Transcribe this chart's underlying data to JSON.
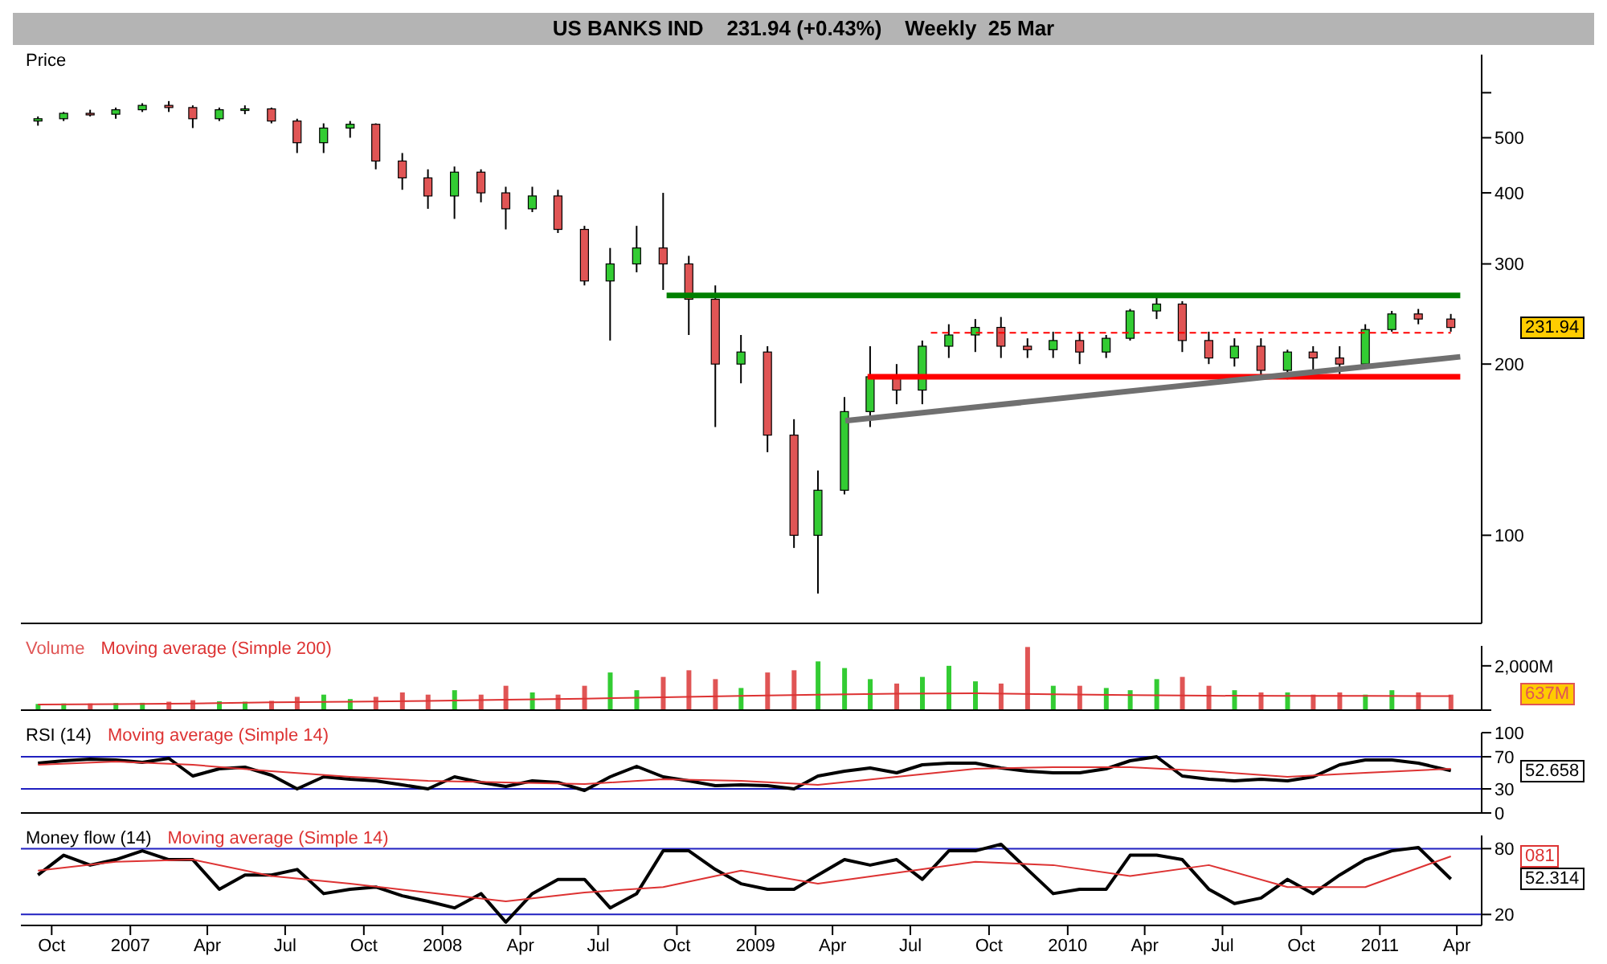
{
  "chart_data": [
    {
      "type": "candlestick",
      "title": "US BANKS IND    231.94 (+0.43%)    Weekly  25 Mar",
      "ylabel": "Price",
      "log": true,
      "tick_labels": "y",
      "x": [
        "2006-09-15",
        "2006-10-15",
        "2006-11-15",
        "2006-12-15",
        "2007-01-15",
        "2007-02-15",
        "2007-03-15",
        "2007-04-15",
        "2007-05-15",
        "2007-06-15",
        "2007-07-15",
        "2007-08-15",
        "2007-09-15",
        "2007-10-15",
        "2007-11-15",
        "2007-12-15",
        "2008-01-15",
        "2008-02-15",
        "2008-03-15",
        "2008-04-15",
        "2008-05-15",
        "2008-06-15",
        "2008-07-15",
        "2008-08-15",
        "2008-09-15",
        "2008-10-15",
        "2008-11-15",
        "2008-12-15",
        "2009-01-15",
        "2009-02-15",
        "2009-03-15",
        "2009-04-15",
        "2009-05-15",
        "2009-06-15",
        "2009-07-15",
        "2009-08-15",
        "2009-09-15",
        "2009-10-15",
        "2009-11-15",
        "2009-12-15",
        "2010-01-15",
        "2010-02-15",
        "2010-03-15",
        "2010-04-15",
        "2010-05-15",
        "2010-06-15",
        "2010-07-15",
        "2010-08-15",
        "2010-09-15",
        "2010-10-15",
        "2010-11-15",
        "2010-12-15",
        "2011-01-15",
        "2011-02-15",
        "2011-03-25"
      ],
      "ohlc": [
        [
          535,
          545,
          525,
          540
        ],
        [
          540,
          555,
          535,
          552
        ],
        [
          552,
          560,
          545,
          550
        ],
        [
          550,
          565,
          540,
          560
        ],
        [
          560,
          575,
          555,
          570
        ],
        [
          570,
          580,
          555,
          565
        ],
        [
          565,
          570,
          520,
          540
        ],
        [
          540,
          565,
          535,
          560
        ],
        [
          560,
          570,
          550,
          562
        ],
        [
          562,
          565,
          530,
          535
        ],
        [
          535,
          540,
          470,
          490
        ],
        [
          490,
          530,
          470,
          520
        ],
        [
          520,
          535,
          500,
          528
        ],
        [
          528,
          530,
          440,
          455
        ],
        [
          455,
          470,
          405,
          425
        ],
        [
          425,
          440,
          375,
          395
        ],
        [
          395,
          445,
          360,
          435
        ],
        [
          435,
          440,
          385,
          400
        ],
        [
          400,
          410,
          345,
          375
        ],
        [
          375,
          410,
          370,
          395
        ],
        [
          395,
          405,
          340,
          345
        ],
        [
          345,
          350,
          275,
          280
        ],
        [
          280,
          320,
          220,
          300
        ],
        [
          300,
          350,
          290,
          320
        ],
        [
          320,
          400,
          270,
          300
        ],
        [
          300,
          310,
          225,
          260
        ],
        [
          260,
          275,
          155,
          200
        ],
        [
          200,
          225,
          185,
          210
        ],
        [
          210,
          215,
          140,
          150
        ],
        [
          150,
          160,
          95,
          100
        ],
        [
          100,
          130,
          79,
          120
        ],
        [
          120,
          175,
          118,
          165
        ],
        [
          165,
          215,
          155,
          190
        ],
        [
          190,
          200,
          170,
          180
        ],
        [
          180,
          220,
          170,
          215
        ],
        [
          215,
          235,
          205,
          225
        ],
        [
          225,
          240,
          210,
          232
        ],
        [
          232,
          242,
          205,
          215
        ],
        [
          215,
          222,
          205,
          212
        ],
        [
          212,
          228,
          205,
          220
        ],
        [
          220,
          228,
          200,
          210
        ],
        [
          210,
          225,
          205,
          222
        ],
        [
          222,
          250,
          220,
          248
        ],
        [
          248,
          264,
          240,
          255
        ],
        [
          255,
          258,
          210,
          220
        ],
        [
          220,
          228,
          200,
          205
        ],
        [
          205,
          222,
          198,
          215
        ],
        [
          215,
          222,
          190,
          195
        ],
        [
          195,
          212,
          188,
          210
        ],
        [
          210,
          215,
          195,
          205
        ],
        [
          205,
          215,
          192,
          200
        ],
        [
          200,
          235,
          198,
          230
        ],
        [
          230,
          248,
          228,
          245
        ],
        [
          245,
          250,
          235,
          240
        ],
        [
          240,
          245,
          228,
          231.94
        ]
      ],
      "colors": [
        "#33cc33",
        "#33cc33",
        "#e05555",
        "#33cc33",
        "#33cc33",
        "#e05555",
        "#e05555",
        "#33cc33",
        "#33cc33",
        "#e05555",
        "#e05555",
        "#33cc33",
        "#33cc33",
        "#e05555",
        "#e05555",
        "#e05555",
        "#33cc33",
        "#e05555",
        "#e05555",
        "#33cc33",
        "#e05555",
        "#e05555",
        "#33cc33",
        "#33cc33",
        "#e05555",
        "#e05555",
        "#e05555",
        "#33cc33",
        "#e05555",
        "#e05555",
        "#33cc33",
        "#33cc33",
        "#33cc33",
        "#e05555",
        "#33cc33",
        "#33cc33",
        "#33cc33",
        "#e05555",
        "#e05555",
        "#33cc33",
        "#e05555",
        "#33cc33",
        "#33cc33",
        "#33cc33",
        "#e05555",
        "#e05555",
        "#33cc33",
        "#e05555",
        "#33cc33",
        "#e05555",
        "#e05555",
        "#33cc33",
        "#33cc33",
        "#e05555",
        "#e05555"
      ],
      "series": [
        {
          "type": "line",
          "x": [
            "2008-09-19",
            "2011-04-05"
          ],
          "values": [
            264,
            264
          ],
          "color": "#008000"
        },
        {
          "type": "line",
          "x": [
            "2009-05-12",
            "2011-04-05"
          ],
          "values": [
            190,
            190
          ],
          "color": "#ff0000"
        },
        {
          "type": "line",
          "x": [
            "2009-07-25",
            "2011-03-25"
          ],
          "values": [
            227,
            227
          ],
          "color": "#ff0000",
          "line_style": "dashed"
        },
        {
          "type": "line",
          "x": [
            "2009-04-16",
            "2011-04-05"
          ],
          "values": [
            159,
            206
          ],
          "color": "#707070"
        }
      ],
      "xlim": [
        "2006-08-26",
        "2011-04-30"
      ],
      "ylim": [
        70,
        700
      ],
      "yticks": [
        100,
        200,
        300,
        400,
        500,
        {
          "value": 600,
          "label": null
        }
      ],
      "annotations": [
        "231.94"
      ]
    },
    {
      "type": "bar",
      "tick_labels": "y",
      "legend": "top left",
      "x": [
        "2006-09-15",
        "2006-10-15",
        "2006-11-15",
        "2006-12-15",
        "2007-01-15",
        "2007-02-15",
        "2007-03-15",
        "2007-04-15",
        "2007-05-15",
        "2007-06-15",
        "2007-07-15",
        "2007-08-15",
        "2007-09-15",
        "2007-10-15",
        "2007-11-15",
        "2007-12-15",
        "2008-01-15",
        "2008-02-15",
        "2008-03-15",
        "2008-04-15",
        "2008-05-15",
        "2008-06-15",
        "2008-07-15",
        "2008-08-15",
        "2008-09-15",
        "2008-10-15",
        "2008-11-15",
        "2008-12-15",
        "2009-01-15",
        "2009-02-15",
        "2009-03-15",
        "2009-04-15",
        "2009-05-15",
        "2009-06-15",
        "2009-07-15",
        "2009-08-15",
        "2009-09-15",
        "2009-10-15",
        "2009-11-15",
        "2009-12-15",
        "2010-01-15",
        "2010-02-15",
        "2010-03-15",
        "2010-04-15",
        "2010-05-15",
        "2010-06-15",
        "2010-07-15",
        "2010-08-15",
        "2010-09-15",
        "2010-10-15",
        "2010-11-15",
        "2010-12-15",
        "2011-01-15",
        "2011-02-15",
        "2011-03-25"
      ],
      "series": [
        {
          "name": "Volume",
          "type": "bar",
          "color": "#e05555",
          "values": [
            280,
            300,
            300,
            320,
            330,
            380,
            450,
            400,
            380,
            420,
            600,
            700,
            500,
            600,
            800,
            700,
            900,
            700,
            1100,
            800,
            700,
            1100,
            1700,
            900,
            1500,
            1800,
            1400,
            1000,
            1700,
            1800,
            2200,
            1900,
            1400,
            1200,
            1500,
            2000,
            1300,
            1200,
            2850,
            1100,
            1100,
            1000,
            900,
            1400,
            1500,
            1100,
            900,
            800,
            800,
            700,
            800,
            700,
            900,
            800,
            700
          ],
          "colors": [
            "#33cc33",
            "#33cc33",
            "#e05555",
            "#33cc33",
            "#33cc33",
            "#e05555",
            "#e05555",
            "#33cc33",
            "#33cc33",
            "#e05555",
            "#e05555",
            "#33cc33",
            "#33cc33",
            "#e05555",
            "#e05555",
            "#e05555",
            "#33cc33",
            "#e05555",
            "#e05555",
            "#33cc33",
            "#e05555",
            "#e05555",
            "#33cc33",
            "#33cc33",
            "#e05555",
            "#e05555",
            "#e05555",
            "#33cc33",
            "#e05555",
            "#e05555",
            "#33cc33",
            "#33cc33",
            "#33cc33",
            "#e05555",
            "#33cc33",
            "#33cc33",
            "#33cc33",
            "#e05555",
            "#e05555",
            "#33cc33",
            "#e05555",
            "#33cc33",
            "#33cc33",
            "#33cc33",
            "#e05555",
            "#e05555",
            "#33cc33",
            "#e05555",
            "#33cc33",
            "#e05555",
            "#e05555",
            "#33cc33",
            "#33cc33",
            "#e05555",
            "#e05555"
          ]
        },
        {
          "name": "Moving average (Simple 200)",
          "type": "line",
          "color": "#dd3333",
          "x": [
            "2006-09-15",
            "2006-12-15",
            "2007-03-15",
            "2007-06-15",
            "2007-09-15",
            "2007-12-15",
            "2008-03-15",
            "2008-06-15",
            "2008-09-15",
            "2008-12-15",
            "2009-03-15",
            "2009-06-15",
            "2009-09-15",
            "2009-12-15",
            "2010-03-15",
            "2010-06-15",
            "2010-09-15",
            "2010-12-15",
            "2011-03-25"
          ],
          "values": [
            250,
            270,
            300,
            350,
            380,
            420,
            470,
            520,
            580,
            640,
            700,
            740,
            760,
            720,
            680,
            650,
            640,
            640,
            637
          ]
        }
      ],
      "xlim": [
        "2006-08-26",
        "2011-04-30"
      ],
      "ylim": [
        0,
        2900
      ],
      "yticks": [
        {
          "value": 0,
          "label": null
        },
        {
          "value": 2000,
          "label": "2,000M"
        }
      ],
      "annotations": [
        "637M"
      ]
    },
    {
      "type": "line",
      "tick_labels": "y",
      "legend": "top left",
      "series": [
        {
          "name": "RSI (14)",
          "color": "#000000",
          "x": [
            "2006-09-15",
            "2006-10-15",
            "2006-11-15",
            "2006-12-15",
            "2007-01-15",
            "2007-02-15",
            "2007-03-15",
            "2007-04-15",
            "2007-05-15",
            "2007-06-15",
            "2007-07-15",
            "2007-08-15",
            "2007-09-15",
            "2007-10-15",
            "2007-11-15",
            "2007-12-15",
            "2008-01-15",
            "2008-02-15",
            "2008-03-15",
            "2008-04-15",
            "2008-05-15",
            "2008-06-15",
            "2008-07-15",
            "2008-08-15",
            "2008-09-15",
            "2008-10-15",
            "2008-11-15",
            "2008-12-15",
            "2009-01-15",
            "2009-02-15",
            "2009-03-15",
            "2009-04-15",
            "2009-05-15",
            "2009-06-15",
            "2009-07-15",
            "2009-08-15",
            "2009-09-15",
            "2009-10-15",
            "2009-11-15",
            "2009-12-15",
            "2010-01-15",
            "2010-02-15",
            "2010-03-15",
            "2010-04-15",
            "2010-05-15",
            "2010-06-15",
            "2010-07-15",
            "2010-08-15",
            "2010-09-15",
            "2010-10-15",
            "2010-11-15",
            "2010-12-15",
            "2011-01-15",
            "2011-02-15",
            "2011-03-25"
          ],
          "values": [
            62,
            65,
            67,
            66,
            63,
            68,
            46,
            55,
            57,
            47,
            30,
            45,
            42,
            40,
            35,
            30,
            45,
            38,
            33,
            40,
            38,
            28,
            45,
            58,
            45,
            40,
            34,
            35,
            34,
            30,
            46,
            52,
            56,
            50,
            60,
            62,
            62,
            56,
            52,
            50,
            50,
            55,
            65,
            70,
            46,
            42,
            40,
            42,
            40,
            45,
            60,
            66,
            66,
            62,
            52.658
          ]
        },
        {
          "name": "Moving average (Simple 14)",
          "color": "#dd3333",
          "x": [
            "2006-09-15",
            "2006-12-15",
            "2007-03-15",
            "2007-06-15",
            "2007-09-15",
            "2007-12-15",
            "2008-03-15",
            "2008-06-15",
            "2008-09-15",
            "2008-12-15",
            "2009-03-15",
            "2009-06-15",
            "2009-09-15",
            "2009-12-15",
            "2010-03-15",
            "2010-06-15",
            "2010-09-15",
            "2010-12-15",
            "2011-03-25"
          ],
          "values": [
            60,
            64,
            60,
            52,
            45,
            40,
            38,
            36,
            42,
            40,
            35,
            45,
            55,
            57,
            57,
            52,
            45,
            50,
            55
          ]
        }
      ],
      "ref_lines": [
        {
          "axis": "y",
          "value": 70,
          "color": "#2020c0"
        },
        {
          "axis": "y",
          "value": 30,
          "color": "#2020c0"
        }
      ],
      "xlim": [
        "2006-08-26",
        "2011-04-30"
      ],
      "ylim": [
        0,
        100
      ],
      "yticks": [
        0,
        30,
        70,
        100
      ],
      "annotations": [
        "52.658"
      ]
    },
    {
      "type": "line",
      "legend": "top left",
      "series": [
        {
          "name": "Money flow (14)",
          "color": "#000000",
          "x": [
            "2006-09-15",
            "2006-10-15",
            "2006-11-15",
            "2006-12-15",
            "2007-01-15",
            "2007-02-15",
            "2007-03-15",
            "2007-04-15",
            "2007-05-15",
            "2007-06-15",
            "2007-07-15",
            "2007-08-15",
            "2007-09-15",
            "2007-10-15",
            "2007-11-15",
            "2007-12-15",
            "2008-01-15",
            "2008-02-15",
            "2008-03-15",
            "2008-04-15",
            "2008-05-15",
            "2008-06-15",
            "2008-07-15",
            "2008-08-15",
            "2008-09-15",
            "2008-10-15",
            "2008-11-15",
            "2008-12-15",
            "2009-01-15",
            "2009-02-15",
            "2009-03-15",
            "2009-04-15",
            "2009-05-15",
            "2009-06-15",
            "2009-07-15",
            "2009-08-15",
            "2009-09-15",
            "2009-10-15",
            "2009-11-15",
            "2009-12-15",
            "2010-01-15",
            "2010-02-15",
            "2010-03-15",
            "2010-04-15",
            "2010-05-15",
            "2010-06-15",
            "2010-07-15",
            "2010-08-15",
            "2010-09-15",
            "2010-10-15",
            "2010-11-15",
            "2010-12-15",
            "2011-01-15",
            "2011-02-15",
            "2011-03-25"
          ],
          "values": [
            56,
            74,
            65,
            70,
            78,
            70,
            70,
            43,
            56,
            56,
            61,
            39,
            43,
            45,
            37,
            32,
            26,
            39,
            13,
            39,
            52,
            52,
            26,
            39,
            78,
            78,
            61,
            48,
            43,
            43,
            56,
            70,
            65,
            70,
            52,
            78,
            78,
            84,
            61,
            39,
            43,
            43,
            74,
            74,
            70,
            43,
            30,
            35,
            52,
            39,
            56,
            70,
            78,
            81,
            52.314
          ]
        },
        {
          "name": "Moving average (Simple 14)",
          "color": "#dd3333",
          "x": [
            "2006-09-15",
            "2006-12-15",
            "2007-03-15",
            "2007-06-15",
            "2007-09-15",
            "2007-12-15",
            "2008-03-15",
            "2008-06-15",
            "2008-09-15",
            "2008-12-15",
            "2009-03-15",
            "2009-06-15",
            "2009-09-15",
            "2009-12-15",
            "2010-03-15",
            "2010-06-15",
            "2010-09-15",
            "2010-12-15",
            "2011-03-25"
          ],
          "values": [
            60,
            68,
            70,
            55,
            48,
            40,
            32,
            40,
            45,
            60,
            48,
            58,
            68,
            65,
            55,
            65,
            45,
            45,
            73
          ]
        }
      ],
      "ref_lines": [
        {
          "axis": "y",
          "value": 80,
          "color": "#2020c0"
        },
        {
          "axis": "y",
          "value": 20,
          "color": "#2020c0"
        }
      ],
      "xlim": [
        "2006-08-26",
        "2011-04-30"
      ],
      "ylim": [
        10,
        92
      ],
      "yticks": [
        20,
        80
      ],
      "xticks": [
        {
          "value": "2006-10-01",
          "label": "Oct"
        },
        {
          "value": "2007-01-01",
          "label": "2007"
        },
        {
          "value": "2007-04-01",
          "label": "Apr"
        },
        {
          "value": "2007-07-01",
          "label": "Jul"
        },
        {
          "value": "2007-10-01",
          "label": "Oct"
        },
        {
          "value": "2008-01-01",
          "label": "2008"
        },
        {
          "value": "2008-04-01",
          "label": "Apr"
        },
        {
          "value": "2008-07-01",
          "label": "Jul"
        },
        {
          "value": "2008-10-01",
          "label": "Oct"
        },
        {
          "value": "2009-01-01",
          "label": "2009"
        },
        {
          "value": "2009-04-01",
          "label": "Apr"
        },
        {
          "value": "2009-07-01",
          "label": "Jul"
        },
        {
          "value": "2009-10-01",
          "label": "Oct"
        },
        {
          "value": "2010-01-01",
          "label": "2010"
        },
        {
          "value": "2010-04-01",
          "label": "Apr"
        },
        {
          "value": "2010-07-01",
          "label": "Jul"
        },
        {
          "value": "2010-10-01",
          "label": "Oct"
        },
        {
          "value": "2011-01-01",
          "label": "2011"
        },
        {
          "value": "2011-04-01",
          "label": "Apr"
        }
      ],
      "annotations": [
        "52.314",
        "081"
      ]
    }
  ]
}
